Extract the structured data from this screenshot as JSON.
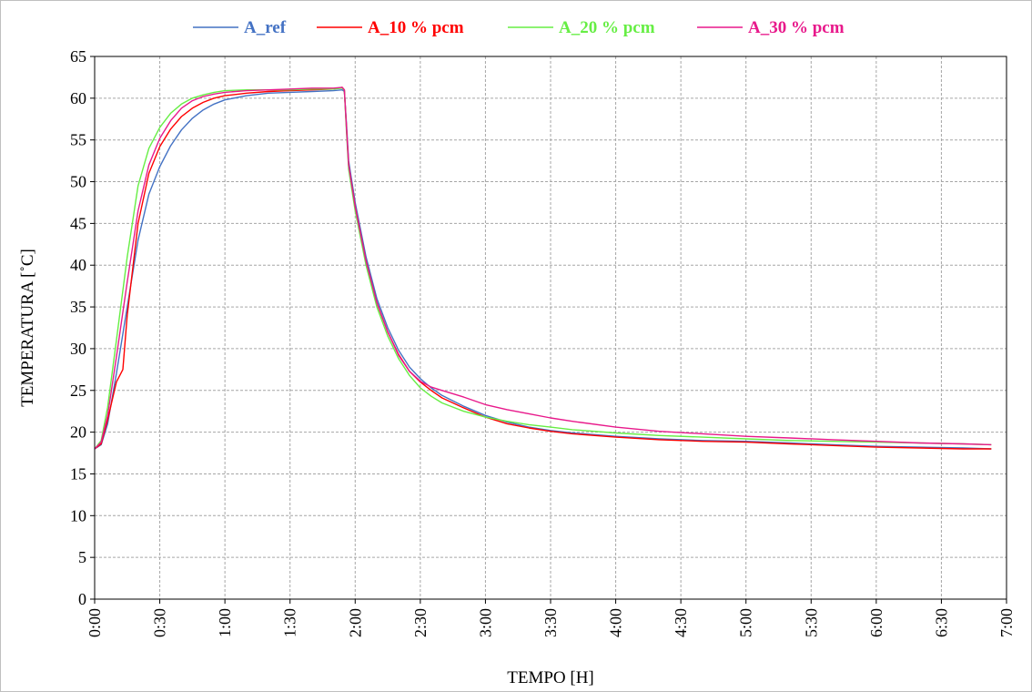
{
  "chart_data": {
    "type": "line",
    "title": "",
    "xlabel": "TEMPO  [H]",
    "ylabel": "TEMPERATURA [˚C]",
    "xlim": [
      0,
      420
    ],
    "ylim": [
      0,
      65
    ],
    "yticks": [
      0,
      5,
      10,
      15,
      20,
      25,
      30,
      35,
      40,
      45,
      50,
      55,
      60,
      65
    ],
    "xticks": [
      0,
      30,
      60,
      90,
      120,
      150,
      180,
      210,
      240,
      270,
      300,
      330,
      360,
      390,
      420
    ],
    "xtick_labels": [
      "0:00",
      "0:30",
      "1:00",
      "1:30",
      "2:00",
      "2:30",
      "3:00",
      "3:30",
      "4:00",
      "4:30",
      "5:00",
      "5:30",
      "6:00",
      "6:30",
      "7:00"
    ],
    "grid": true,
    "legend_position": "top",
    "series": [
      {
        "name": "A_ref",
        "color": "#4472c4",
        "x": [
          0,
          3,
          6,
          10,
          15,
          20,
          25,
          30,
          35,
          40,
          45,
          50,
          55,
          60,
          70,
          80,
          90,
          100,
          110,
          114,
          115,
          116,
          117,
          120,
          125,
          130,
          135,
          140,
          145,
          150,
          155,
          160,
          170,
          180,
          190,
          200,
          210,
          220,
          240,
          260,
          280,
          300,
          320,
          340,
          360,
          380,
          400,
          413
        ],
        "y": [
          18,
          18.5,
          21,
          27,
          35,
          43,
          48.5,
          51.8,
          54.3,
          56.2,
          57.6,
          58.6,
          59.3,
          59.8,
          60.3,
          60.6,
          60.7,
          60.8,
          60.9,
          61.0,
          60.8,
          57,
          52.5,
          47.5,
          41,
          36,
          32.5,
          29.8,
          27.8,
          26.4,
          25.3,
          24.4,
          23.1,
          22.0,
          21.2,
          20.6,
          20.2,
          19.9,
          19.5,
          19.2,
          19.0,
          18.9,
          18.7,
          18.5,
          18.3,
          18.2,
          18.1,
          18.0
        ]
      },
      {
        "name": "A_10 % pcm",
        "color": "#ff0000",
        "x": [
          0,
          3,
          6,
          10,
          13,
          15,
          20,
          25,
          30,
          35,
          40,
          45,
          50,
          55,
          60,
          70,
          80,
          90,
          100,
          110,
          114,
          115,
          116,
          117,
          120,
          125,
          130,
          135,
          140,
          145,
          150,
          155,
          160,
          170,
          180,
          190,
          200,
          210,
          220,
          240,
          260,
          280,
          300,
          320,
          340,
          360,
          380,
          400,
          413
        ],
        "y": [
          18,
          18.6,
          21.5,
          26,
          27.5,
          34,
          45,
          51,
          54.2,
          56.3,
          57.8,
          58.8,
          59.5,
          60.0,
          60.3,
          60.6,
          60.8,
          60.9,
          61.0,
          61.1,
          61.3,
          61.0,
          56.5,
          52,
          47,
          40.5,
          35.5,
          32,
          29.3,
          27.3,
          26.0,
          25.0,
          24.1,
          22.9,
          21.8,
          21.0,
          20.5,
          20.1,
          19.8,
          19.4,
          19.1,
          18.9,
          18.8,
          18.6,
          18.4,
          18.2,
          18.1,
          18.0,
          18.0
        ]
      },
      {
        "name": "A_20 % pcm",
        "color": "#66ee44",
        "x": [
          0,
          3,
          6,
          10,
          15,
          20,
          25,
          30,
          35,
          40,
          45,
          50,
          55,
          60,
          70,
          80,
          90,
          100,
          110,
          114,
          115,
          116,
          117,
          120,
          125,
          130,
          135,
          140,
          145,
          150,
          155,
          160,
          170,
          180,
          190,
          200,
          210,
          220,
          240,
          260,
          280,
          300,
          320,
          340,
          360,
          380,
          400,
          413
        ],
        "y": [
          18,
          19,
          23,
          31,
          41,
          49.5,
          54,
          56.5,
          58.2,
          59.3,
          60.0,
          60.4,
          60.7,
          60.9,
          61.0,
          61.0,
          61.0,
          61.1,
          61.1,
          61.2,
          61.0,
          56,
          51.5,
          46.5,
          40,
          35,
          31.5,
          28.8,
          26.8,
          25.3,
          24.3,
          23.5,
          22.5,
          21.8,
          21.3,
          20.9,
          20.6,
          20.3,
          19.9,
          19.6,
          19.4,
          19.2,
          19.0,
          18.9,
          18.8,
          18.7,
          18.6,
          18.5
        ]
      },
      {
        "name": "A_30 % pcm",
        "color": "#e8198b",
        "x": [
          0,
          3,
          6,
          10,
          15,
          20,
          25,
          30,
          35,
          40,
          45,
          50,
          55,
          60,
          70,
          80,
          90,
          100,
          110,
          114,
          115,
          116,
          117,
          120,
          125,
          130,
          135,
          140,
          145,
          150,
          155,
          160,
          170,
          180,
          190,
          200,
          210,
          220,
          240,
          260,
          280,
          300,
          320,
          340,
          360,
          380,
          400,
          413
        ],
        "y": [
          18,
          18.8,
          22,
          29,
          38,
          46.5,
          52,
          55.2,
          57.3,
          58.8,
          59.7,
          60.2,
          60.5,
          60.7,
          60.9,
          61.0,
          61.1,
          61.2,
          61.2,
          61.3,
          61.0,
          56.5,
          52,
          47,
          40.5,
          35.5,
          32,
          29.2,
          27.3,
          26.1,
          25.4,
          25.0,
          24.2,
          23.3,
          22.7,
          22.2,
          21.7,
          21.3,
          20.6,
          20.1,
          19.8,
          19.5,
          19.3,
          19.1,
          18.9,
          18.7,
          18.6,
          18.5
        ]
      }
    ]
  }
}
